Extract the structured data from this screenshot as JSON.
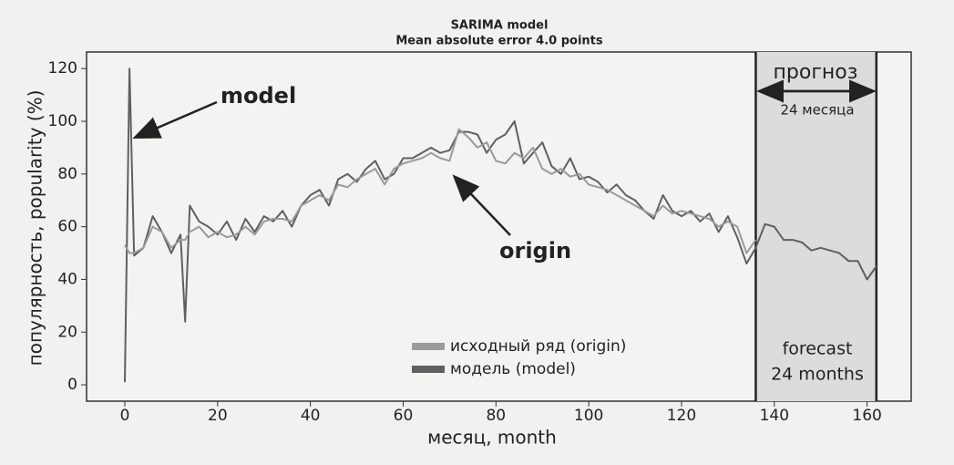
{
  "chart_data": {
    "type": "line",
    "title": "SARIMA model",
    "subtitle": "Mean absolute error 4.0 points",
    "x_label": "месяц, month",
    "y_label": "популярность, popularity (%)",
    "annotations": {
      "model": "model",
      "origin": "origin",
      "forecast_ru": "прогноз",
      "months_ru": "24 месяца",
      "forecast_en": "forecast",
      "months_en": "24 months"
    },
    "x": [
      0,
      1,
      2,
      4,
      6,
      8,
      10,
      12,
      13,
      14,
      16,
      18,
      20,
      22,
      24,
      26,
      28,
      30,
      32,
      34,
      36,
      38,
      40,
      42,
      44,
      46,
      48,
      50,
      52,
      54,
      56,
      58,
      60,
      62,
      64,
      66,
      68,
      70,
      72,
      74,
      76,
      78,
      80,
      82,
      84,
      86,
      88,
      90,
      92,
      94,
      96,
      98,
      100,
      102,
      104,
      106,
      108,
      110,
      112,
      114,
      116,
      118,
      120,
      122,
      124,
      126,
      128,
      130,
      132,
      134,
      136,
      138,
      140,
      142,
      144,
      146,
      148,
      150,
      152,
      154,
      156,
      158,
      160,
      162
    ],
    "series": [
      {
        "name": "исходный ряд (origin)",
        "color": "#9a9a9a",
        "values": [
          53,
          50,
          50,
          52,
          60,
          58,
          52,
          55,
          55,
          58,
          60,
          56,
          58,
          56,
          57,
          60,
          57,
          62,
          63,
          63,
          62,
          68,
          70,
          72,
          70,
          76,
          75,
          78,
          80,
          82,
          76,
          82,
          84,
          85,
          86,
          88,
          86,
          85,
          97,
          94,
          90,
          92,
          85,
          84,
          88,
          86,
          90,
          82,
          80,
          82,
          79,
          80,
          76,
          75,
          74,
          72,
          70,
          68,
          66,
          64,
          68,
          65,
          66,
          65,
          64,
          63,
          60,
          62,
          60,
          50,
          55,
          null,
          null,
          null,
          null,
          null,
          null,
          null,
          null,
          null,
          null,
          null,
          null,
          null
        ]
      },
      {
        "name": "модель (model)",
        "color": "#606060",
        "values": [
          1,
          120,
          49,
          52,
          64,
          58,
          50,
          57,
          24,
          68,
          62,
          60,
          57,
          62,
          55,
          63,
          58,
          64,
          62,
          66,
          60,
          68,
          72,
          74,
          68,
          78,
          80,
          77,
          82,
          85,
          78,
          80,
          86,
          86,
          88,
          90,
          88,
          89,
          96,
          96,
          95,
          88,
          93,
          95,
          100,
          84,
          88,
          92,
          83,
          80,
          86,
          78,
          79,
          77,
          73,
          76,
          72,
          70,
          66,
          63,
          72,
          66,
          64,
          66,
          62,
          65,
          58,
          64,
          56,
          46,
          52,
          61,
          60,
          55,
          55,
          54,
          51,
          52,
          51,
          50,
          47,
          47,
          40,
          45
        ]
      }
    ],
    "xlim": [
      -8.25,
      169.5
    ],
    "ylim": [
      -6.2,
      126.3
    ],
    "xticks": [
      0,
      20,
      40,
      60,
      80,
      100,
      120,
      140,
      160
    ],
    "yticks": [
      0,
      20,
      40,
      60,
      80,
      100,
      120
    ]
  }
}
